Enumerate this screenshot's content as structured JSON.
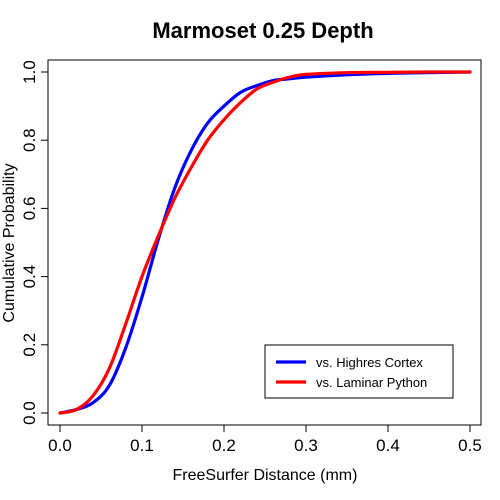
{
  "chart_data": {
    "type": "line",
    "title": "Marmoset 0.25 Depth",
    "xlabel": "FreeSurfer Distance (mm)",
    "ylabel": "Cumulative Probability",
    "xlim": [
      0,
      0.5
    ],
    "ylim": [
      0,
      1
    ],
    "xticks": [
      0,
      0.1,
      0.2,
      0.3,
      0.4,
      0.5
    ],
    "xtick_labels": [
      "0.0",
      "0.1",
      "0.2",
      "0.3",
      "0.4",
      "0.5"
    ],
    "yticks": [
      0,
      0.2,
      0.4,
      0.6,
      0.8,
      1.0
    ],
    "ytick_labels": [
      "0.0",
      "0.2",
      "0.4",
      "0.6",
      "0.8",
      "1.0"
    ],
    "grid": false,
    "legend_position": "bottom-right",
    "series": [
      {
        "name": "vs. Highres Cortex",
        "color": "#0000ff",
        "x": [
          0,
          0.02,
          0.04,
          0.06,
          0.08,
          0.1,
          0.12,
          0.14,
          0.16,
          0.18,
          0.2,
          0.22,
          0.24,
          0.26,
          0.28,
          0.3,
          0.35,
          0.4,
          0.45,
          0.5
        ],
        "y": [
          0,
          0.01,
          0.03,
          0.08,
          0.19,
          0.34,
          0.51,
          0.66,
          0.77,
          0.85,
          0.9,
          0.94,
          0.96,
          0.975,
          0.98,
          0.985,
          0.992,
          0.996,
          0.998,
          1.0
        ]
      },
      {
        "name": "vs. Laminar Python",
        "color": "#ff0000",
        "x": [
          0,
          0.02,
          0.04,
          0.06,
          0.08,
          0.1,
          0.12,
          0.14,
          0.16,
          0.18,
          0.2,
          0.22,
          0.24,
          0.26,
          0.28,
          0.3,
          0.35,
          0.4,
          0.45,
          0.5
        ],
        "y": [
          0,
          0.01,
          0.05,
          0.13,
          0.26,
          0.4,
          0.52,
          0.63,
          0.72,
          0.8,
          0.86,
          0.91,
          0.95,
          0.97,
          0.985,
          0.993,
          0.998,
          0.999,
          1.0,
          1.0
        ]
      }
    ]
  }
}
